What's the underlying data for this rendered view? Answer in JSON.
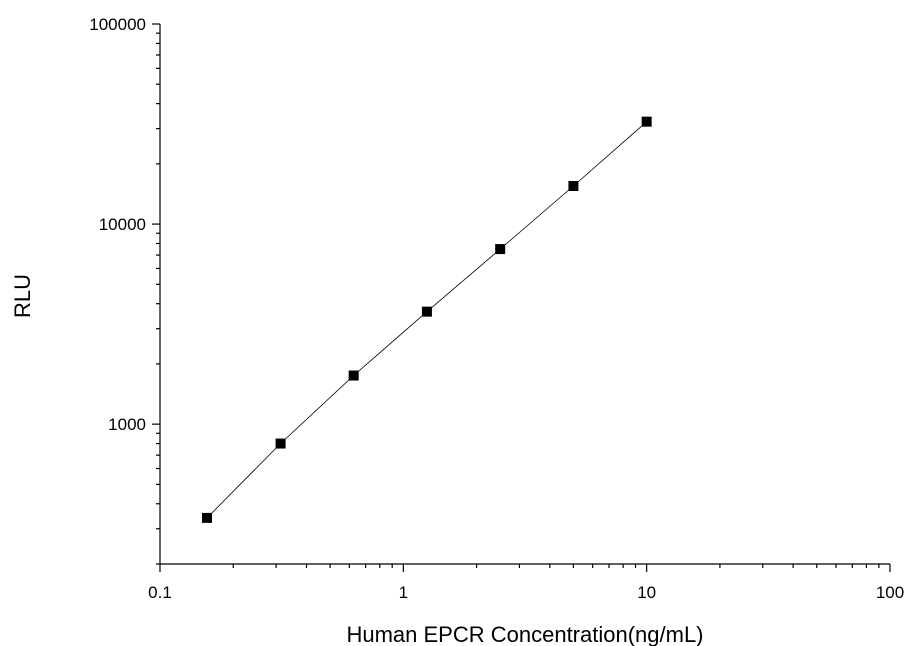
{
  "chart_data": {
    "type": "scatter",
    "title": "",
    "xlabel": "Human EPCR Concentration(ng/mL)",
    "ylabel": "RLU",
    "x_scale": "log",
    "y_scale": "log",
    "xlim": [
      0.1,
      100
    ],
    "ylim": [
      200,
      100000
    ],
    "x_ticks": [
      0.1,
      1,
      10,
      100
    ],
    "x_tick_labels": [
      "0.1",
      "1",
      "10",
      "100"
    ],
    "y_ticks": [
      1000,
      10000,
      100000
    ],
    "y_tick_labels": [
      "1000",
      "10000",
      "100000"
    ],
    "grid": false,
    "legend": "none",
    "series": [
      {
        "marker": "square",
        "line": "fit",
        "x": [
          0.156,
          0.313,
          0.625,
          1.25,
          2.5,
          5,
          10
        ],
        "y": [
          340,
          800,
          1750,
          3650,
          7500,
          15500,
          32500
        ]
      }
    ]
  }
}
